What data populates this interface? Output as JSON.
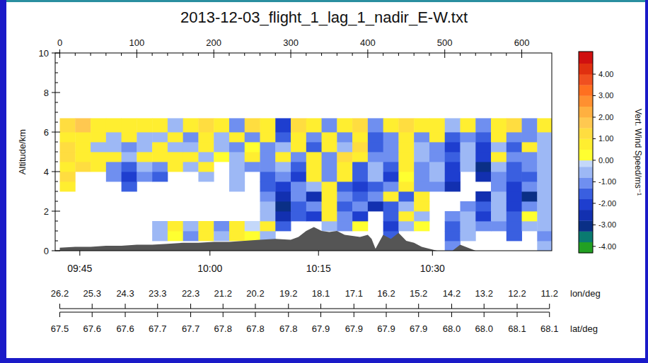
{
  "chart_data": {
    "type": "heatmap",
    "title": "2013-12-03_flight_1_lag_1_nadir_E-W.txt",
    "xlim": [
      -6,
      639
    ],
    "xticks": [
      0,
      100,
      200,
      300,
      400,
      500,
      600
    ],
    "x2ticks": [
      {
        "value": 26,
        "label": "09:45"
      },
      {
        "value": 195,
        "label": "10:00"
      },
      {
        "value": 336,
        "label": "10:15"
      },
      {
        "value": 484,
        "label": "10:30"
      }
    ],
    "ylabel": "Altitude/km",
    "ylim": [
      0,
      10
    ],
    "yticks": [
      0,
      2,
      4,
      6,
      8,
      10
    ],
    "grid": false,
    "lon_label": "lon/deg",
    "lon_ticks": [
      {
        "value": 0,
        "label": "26.2"
      },
      {
        "value": 42,
        "label": "25.3"
      },
      {
        "value": 85,
        "label": "24.3"
      },
      {
        "value": 127,
        "label": "23.3"
      },
      {
        "value": 170,
        "label": "22.3"
      },
      {
        "value": 212,
        "label": "21.2"
      },
      {
        "value": 254,
        "label": "20.2"
      },
      {
        "value": 297,
        "label": "19.2"
      },
      {
        "value": 339,
        "label": "18.1"
      },
      {
        "value": 382,
        "label": "17.1"
      },
      {
        "value": 424,
        "label": "16.2"
      },
      {
        "value": 466,
        "label": "15.2"
      },
      {
        "value": 509,
        "label": "14.2"
      },
      {
        "value": 551,
        "label": "13.2"
      },
      {
        "value": 594,
        "label": "12.2"
      },
      {
        "value": 636,
        "label": "11.2"
      }
    ],
    "lat_label": "lat/deg",
    "lat_ticks": [
      {
        "value": 0,
        "label": "67.5"
      },
      {
        "value": 42,
        "label": "67.6"
      },
      {
        "value": 85,
        "label": "67.6"
      },
      {
        "value": 127,
        "label": "67.7"
      },
      {
        "value": 170,
        "label": "67.7"
      },
      {
        "value": 212,
        "label": "67.8"
      },
      {
        "value": 254,
        "label": "67.8"
      },
      {
        "value": 297,
        "label": "67.8"
      },
      {
        "value": 339,
        "label": "67.9"
      },
      {
        "value": 382,
        "label": "67.9"
      },
      {
        "value": 424,
        "label": "67.9"
      },
      {
        "value": 466,
        "label": "67.9"
      },
      {
        "value": 509,
        "label": "68.0"
      },
      {
        "value": 551,
        "label": "68.0"
      },
      {
        "value": 594,
        "label": "68.1"
      },
      {
        "value": 636,
        "label": "68.1"
      }
    ],
    "x_edges": [
      0,
      20,
      40,
      60,
      80,
      100,
      120,
      140,
      160,
      180,
      200,
      220,
      240,
      260,
      280,
      300,
      320,
      340,
      360,
      380,
      400,
      420,
      440,
      460,
      480,
      500,
      520,
      540,
      560,
      580,
      600,
      620,
      640
    ],
    "y_edges": [
      0,
      0.5,
      1,
      1.5,
      2,
      2.5,
      3,
      3.5,
      4,
      4.5,
      5,
      5.5,
      6,
      6.7
    ],
    "cells": [
      [
        null,
        null,
        null,
        null,
        null,
        null,
        null,
        null,
        null,
        null,
        null,
        null,
        null,
        null,
        null,
        null,
        null,
        null,
        null,
        null,
        null,
        null,
        null,
        null,
        null,
        -1.2,
        null,
        null,
        null,
        null,
        null,
        -0.8
      ],
      [
        null,
        null,
        null,
        null,
        null,
        null,
        -0.6,
        0.4,
        -1.2,
        0.5,
        -0.5,
        0.6,
        0.3,
        -0.4,
        null,
        null,
        null,
        null,
        null,
        null,
        null,
        -1.6,
        null,
        null,
        null,
        -1.8,
        -0.7,
        null,
        null,
        -1.4,
        null,
        -0.9
      ],
      [
        null,
        null,
        null,
        null,
        null,
        null,
        -0.8,
        0.6,
        -0.5,
        0.8,
        -1.3,
        0.7,
        -0.3,
        0.5,
        -1.5,
        null,
        null,
        -0.6,
        -1.1,
        0.4,
        null,
        -2.0,
        -0.5,
        0.3,
        null,
        -1.5,
        -0.6,
        -1.1,
        -0.9,
        -1.8,
        -0.7,
        -0.6
      ],
      [
        null,
        null,
        null,
        null,
        null,
        null,
        null,
        null,
        null,
        null,
        null,
        null,
        null,
        -0.7,
        -2.6,
        -1.4,
        -2.2,
        0.6,
        -1.0,
        -1.9,
        null,
        -1.7,
        0.5,
        -0.8,
        null,
        -1.3,
        -0.5,
        -2.1,
        -0.8,
        -1.6,
        0.4,
        -0.7
      ],
      [
        null,
        null,
        null,
        null,
        null,
        null,
        null,
        null,
        null,
        null,
        null,
        null,
        null,
        -0.5,
        -3.2,
        -1.8,
        -1.2,
        0.7,
        -1.5,
        -0.9,
        -2.4,
        -1.4,
        -0.6,
        0.8,
        null,
        null,
        -0.9,
        -1.7,
        -0.6,
        -2.2,
        -1.2,
        -0.8
      ],
      [
        null,
        null,
        null,
        null,
        null,
        null,
        null,
        null,
        null,
        null,
        null,
        null,
        null,
        -1.1,
        -2.8,
        -0.9,
        -2.5,
        0.5,
        -1.3,
        -1.8,
        -1.0,
        0.6,
        -1.4,
        0.9,
        null,
        null,
        null,
        -2.6,
        -0.7,
        -1.9,
        -2.9,
        -0.5
      ],
      [
        0.8,
        null,
        null,
        null,
        -1.6,
        null,
        null,
        null,
        null,
        null,
        null,
        -0.5,
        null,
        -1.4,
        -2.3,
        -1.2,
        -0.8,
        0.9,
        -1.6,
        -2.1,
        -1.5,
        -1.1,
        0.6,
        -0.9,
        -1.3,
        -2.4,
        null,
        null,
        -1.0,
        -2.0,
        -1.1,
        -0.6
      ],
      [
        1.0,
        null,
        null,
        -1.2,
        -2.0,
        -0.9,
        -1.4,
        null,
        null,
        -0.6,
        null,
        -0.8,
        null,
        -1.7,
        -1.0,
        -2.1,
        0.5,
        -1.3,
        0.7,
        -1.6,
        -0.7,
        -1.9,
        0.4,
        -1.2,
        -0.8,
        -2.2,
        null,
        -2.7,
        -0.9,
        -1.7,
        -1.4,
        -0.5
      ],
      [
        0.9,
        1.1,
        0.6,
        -0.9,
        -1.5,
        -0.7,
        -1.0,
        0.5,
        -0.6,
        0.7,
        null,
        -0.4,
        -0.9,
        -1.3,
        -0.8,
        -1.6,
        0.6,
        -1.0,
        0.8,
        -1.4,
        -0.5,
        -1.5,
        0.5,
        -1.1,
        -0.6,
        -1.9,
        -0.7,
        -3.1,
        -0.8,
        -1.5,
        -1.2,
        -0.7
      ],
      [
        1.2,
        0.9,
        0.8,
        0.5,
        -0.8,
        0.6,
        0.7,
        0.9,
        0.6,
        -0.5,
        0.4,
        -0.7,
        0.5,
        -1.0,
        0.6,
        -1.2,
        0.8,
        -0.9,
        1.0,
        0.7,
        -1.1,
        -1.3,
        0.9,
        -0.6,
        -1.0,
        -1.7,
        -0.6,
        -2.3,
        0.5,
        -1.2,
        -0.9,
        -0.6
      ],
      [
        1.1,
        0.8,
        -0.4,
        -0.6,
        -0.9,
        -0.7,
        0.5,
        -0.8,
        -0.5,
        0.6,
        -0.6,
        -0.9,
        0.4,
        -1.2,
        -0.7,
        0.8,
        -1.4,
        0.7,
        -0.8,
        1.1,
        -1.5,
        -0.9,
        0.7,
        -0.7,
        -1.2,
        -2.0,
        -0.8,
        -1.9,
        -0.6,
        -1.4,
        0.6,
        -0.7
      ],
      [
        0.9,
        0.7,
        0.6,
        -0.5,
        0.5,
        -0.6,
        -0.8,
        0.6,
        -1.0,
        0.5,
        -0.7,
        0.8,
        -1.1,
        0.6,
        -1.6,
        0.9,
        -1.3,
        0.8,
        -1.1,
        0.9,
        -1.4,
        -1.0,
        0.8,
        -0.9,
        0.5,
        -1.8,
        -1.0,
        -1.6,
        0.6,
        -1.3,
        -0.9,
        -0.8
      ],
      [
        1.4,
        1.6,
        0.9,
        0.7,
        0.8,
        0.6,
        0.9,
        -0.5,
        0.8,
        1.0,
        0.7,
        -0.9,
        1.2,
        0.8,
        -2.2,
        1.1,
        0.9,
        -1.2,
        0.8,
        1.0,
        -1.1,
        0.7,
        1.3,
        0.9,
        0.8,
        -0.6,
        0.9,
        -1.0,
        0.7,
        1.1,
        -1.3,
        0.6
      ]
    ],
    "terrain": {
      "color": "#555555",
      "x": [
        0,
        20,
        40,
        60,
        80,
        100,
        120,
        140,
        160,
        180,
        200,
        220,
        240,
        260,
        280,
        300,
        310,
        320,
        330,
        340,
        350,
        360,
        370,
        380,
        390,
        400,
        405,
        410,
        420,
        430,
        440,
        450,
        460,
        470,
        480,
        490,
        500,
        510,
        520,
        540,
        560,
        580,
        600,
        620,
        640
      ],
      "values": [
        0.15,
        0.2,
        0.2,
        0.25,
        0.25,
        0.3,
        0.3,
        0.35,
        0.4,
        0.4,
        0.45,
        0.45,
        0.5,
        0.55,
        0.6,
        0.55,
        0.7,
        1.0,
        1.2,
        1.0,
        0.95,
        1.0,
        0.8,
        0.75,
        0.7,
        0.8,
        0.6,
        0.1,
        0.8,
        0.6,
        0.9,
        0.5,
        0.4,
        0.2,
        0.1,
        0,
        0,
        0,
        0.3,
        0,
        0,
        0,
        0,
        0,
        0
      ]
    },
    "color_scale": {
      "label": "Vert. Wind Speed/ms⁻¹",
      "bounds": [
        -4.3,
        -3.8,
        -3.3,
        -2.8,
        -2.3,
        -1.8,
        -1.3,
        -0.8,
        -0.3,
        0,
        0.5,
        1.0,
        1.5,
        2.0,
        2.5,
        3.0,
        3.5,
        4.0,
        4.5,
        5.05
      ],
      "colors": [
        "#22a022",
        "#0a7a70",
        "#0a2f86",
        "#1230b0",
        "#1e3ecf",
        "#3a5fe0",
        "#6f8ff0",
        "#9db8f5",
        "#c4d8fa",
        "#ffff30",
        "#ffee30",
        "#ffdd40",
        "#ffc850",
        "#ffb040",
        "#ff9030",
        "#ff7020",
        "#f05020",
        "#e03010",
        "#d01010"
      ],
      "ticks": [
        {
          "value": 4,
          "label": "4.00"
        },
        {
          "value": 3,
          "label": "3.00"
        },
        {
          "value": 2,
          "label": "2.00"
        },
        {
          "value": 1,
          "label": "1.00"
        },
        {
          "value": 0,
          "label": "0.00"
        },
        {
          "value": -1,
          "label": "-1.00"
        },
        {
          "value": -2,
          "label": "-2.00"
        },
        {
          "value": -3,
          "label": "-3.00"
        },
        {
          "value": -4,
          "label": "-4.00"
        }
      ]
    }
  }
}
